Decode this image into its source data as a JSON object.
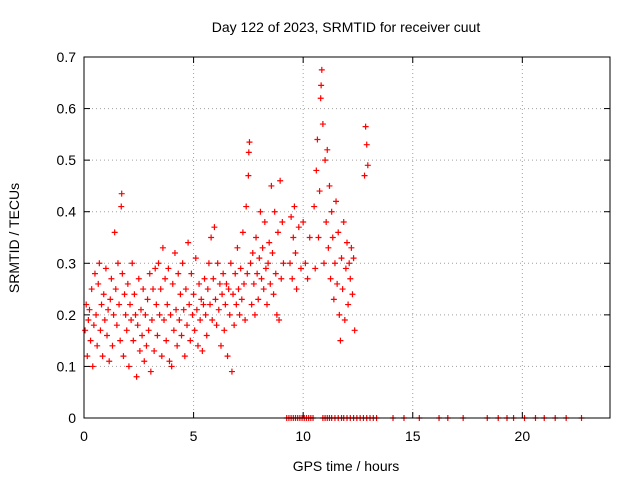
{
  "chart_data": {
    "type": "scatter",
    "title": "Day 122 of 2023, SRMTID for receiver cuut",
    "xlabel": "GPS time / hours",
    "ylabel": "SRMTID / TECUs",
    "xlim": [
      0,
      24
    ],
    "ylim": [
      0,
      0.7
    ],
    "xticks": [
      0,
      5,
      10,
      15,
      20
    ],
    "yticks": [
      0,
      0.1,
      0.2,
      0.3,
      0.4,
      0.5,
      0.6,
      0.7
    ],
    "grid": true,
    "marker": "+",
    "color": "#ff0000",
    "series": [
      {
        "name": "SRMTID",
        "points": [
          [
            0.05,
            0.17
          ],
          [
            0.1,
            0.22
          ],
          [
            0.15,
            0.12
          ],
          [
            0.2,
            0.19
          ],
          [
            0.25,
            0.21
          ],
          [
            0.3,
            0.15
          ],
          [
            0.35,
            0.25
          ],
          [
            0.4,
            0.1
          ],
          [
            0.45,
            0.18
          ],
          [
            0.5,
            0.28
          ],
          [
            0.55,
            0.2
          ],
          [
            0.6,
            0.14
          ],
          [
            0.65,
            0.26
          ],
          [
            0.7,
            0.3
          ],
          [
            0.75,
            0.17
          ],
          [
            0.8,
            0.22
          ],
          [
            0.85,
            0.12
          ],
          [
            0.9,
            0.24
          ],
          [
            0.95,
            0.19
          ],
          [
            1.0,
            0.29
          ],
          [
            1.05,
            0.16
          ],
          [
            1.1,
            0.21
          ],
          [
            1.15,
            0.11
          ],
          [
            1.2,
            0.23
          ],
          [
            1.25,
            0.27
          ],
          [
            1.3,
            0.14
          ],
          [
            1.35,
            0.2
          ],
          [
            1.4,
            0.36
          ],
          [
            1.45,
            0.25
          ],
          [
            1.5,
            0.18
          ],
          [
            1.55,
            0.3
          ],
          [
            1.6,
            0.22
          ],
          [
            1.65,
            0.15
          ],
          [
            1.7,
            0.41
          ],
          [
            1.72,
            0.435
          ],
          [
            1.75,
            0.28
          ],
          [
            1.8,
            0.12
          ],
          [
            1.85,
            0.24
          ],
          [
            1.9,
            0.2
          ],
          [
            1.95,
            0.17
          ],
          [
            2.0,
            0.26
          ],
          [
            2.05,
            0.1
          ],
          [
            2.1,
            0.22
          ],
          [
            2.15,
            0.19
          ],
          [
            2.2,
            0.3
          ],
          [
            2.25,
            0.15
          ],
          [
            2.3,
            0.24
          ],
          [
            2.35,
            0.2
          ],
          [
            2.4,
            0.08
          ],
          [
            2.45,
            0.18
          ],
          [
            2.5,
            0.27
          ],
          [
            2.55,
            0.13
          ],
          [
            2.6,
            0.21
          ],
          [
            2.65,
            0.16
          ],
          [
            2.7,
            0.25
          ],
          [
            2.75,
            0.11
          ],
          [
            2.8,
            0.2
          ],
          [
            2.85,
            0.14
          ],
          [
            2.9,
            0.23
          ],
          [
            2.95,
            0.17
          ],
          [
            3.0,
            0.28
          ],
          [
            3.05,
            0.09
          ],
          [
            3.1,
            0.19
          ],
          [
            3.15,
            0.25
          ],
          [
            3.2,
            0.13
          ],
          [
            3.25,
            0.29
          ],
          [
            3.3,
            0.22
          ],
          [
            3.35,
            0.16
          ],
          [
            3.4,
            0.3
          ],
          [
            3.45,
            0.2
          ],
          [
            3.5,
            0.25
          ],
          [
            3.55,
            0.12
          ],
          [
            3.6,
            0.33
          ],
          [
            3.65,
            0.19
          ],
          [
            3.7,
            0.27
          ],
          [
            3.75,
            0.15
          ],
          [
            3.8,
            0.22
          ],
          [
            3.85,
            0.29
          ],
          [
            3.9,
            0.11
          ],
          [
            3.95,
            0.2
          ],
          [
            4.0,
            0.1
          ],
          [
            4.05,
            0.26
          ],
          [
            4.1,
            0.17
          ],
          [
            4.15,
            0.32
          ],
          [
            4.2,
            0.21
          ],
          [
            4.25,
            0.14
          ],
          [
            4.3,
            0.28
          ],
          [
            4.35,
            0.19
          ],
          [
            4.4,
            0.24
          ],
          [
            4.45,
            0.16
          ],
          [
            4.5,
            0.3
          ],
          [
            4.55,
            0.21
          ],
          [
            4.6,
            0.12
          ],
          [
            4.65,
            0.25
          ],
          [
            4.7,
            0.18
          ],
          [
            4.75,
            0.34
          ],
          [
            4.8,
            0.22
          ],
          [
            4.85,
            0.15
          ],
          [
            4.9,
            0.28
          ],
          [
            4.95,
            0.2
          ],
          [
            5.0,
            0.24
          ],
          [
            5.05,
            0.17
          ],
          [
            5.1,
            0.31
          ],
          [
            5.15,
            0.21
          ],
          [
            5.2,
            0.14
          ],
          [
            5.25,
            0.26
          ],
          [
            5.3,
            0.19
          ],
          [
            5.35,
            0.23
          ],
          [
            5.4,
            0.13
          ],
          [
            5.45,
            0.22
          ],
          [
            5.5,
            0.27
          ],
          [
            5.55,
            0.2
          ],
          [
            5.6,
            0.16
          ],
          [
            5.65,
            0.25
          ],
          [
            5.7,
            0.3
          ],
          [
            5.75,
            0.22
          ],
          [
            5.8,
            0.35
          ],
          [
            5.85,
            0.19
          ],
          [
            5.9,
            0.27
          ],
          [
            5.95,
            0.37
          ],
          [
            6.0,
            0.23
          ],
          [
            6.05,
            0.18
          ],
          [
            6.1,
            0.3
          ],
          [
            6.15,
            0.21
          ],
          [
            6.2,
            0.26
          ],
          [
            6.25,
            0.14
          ],
          [
            6.3,
            0.24
          ],
          [
            6.35,
            0.28
          ],
          [
            6.4,
            0.17
          ],
          [
            6.45,
            0.22
          ],
          [
            6.5,
            0.26
          ],
          [
            6.55,
            0.12
          ],
          [
            6.6,
            0.25
          ],
          [
            6.65,
            0.2
          ],
          [
            6.7,
            0.3
          ],
          [
            6.75,
            0.09
          ],
          [
            6.8,
            0.24
          ],
          [
            6.85,
            0.18
          ],
          [
            6.9,
            0.28
          ],
          [
            6.95,
            0.22
          ],
          [
            7.0,
            0.33
          ],
          [
            7.05,
            0.25
          ],
          [
            7.1,
            0.2
          ],
          [
            7.15,
            0.29
          ],
          [
            7.2,
            0.23
          ],
          [
            7.25,
            0.36
          ],
          [
            7.3,
            0.26
          ],
          [
            7.35,
            0.19
          ],
          [
            7.4,
            0.41
          ],
          [
            7.45,
            0.28
          ],
          [
            7.5,
            0.47
          ],
          [
            7.52,
            0.515
          ],
          [
            7.55,
            0.535
          ],
          [
            7.6,
            0.3
          ],
          [
            7.65,
            0.22
          ],
          [
            7.7,
            0.32
          ],
          [
            7.75,
            0.26
          ],
          [
            7.8,
            0.2
          ],
          [
            7.85,
            0.35
          ],
          [
            7.9,
            0.28
          ],
          [
            7.95,
            0.23
          ],
          [
            8.0,
            0.31
          ],
          [
            8.05,
            0.4
          ],
          [
            8.1,
            0.27
          ],
          [
            8.15,
            0.33
          ],
          [
            8.2,
            0.25
          ],
          [
            8.25,
            0.38
          ],
          [
            8.3,
            0.29
          ],
          [
            8.35,
            0.22
          ],
          [
            8.4,
            0.3
          ],
          [
            8.45,
            0.34
          ],
          [
            8.5,
            0.26
          ],
          [
            8.55,
            0.45
          ],
          [
            8.6,
            0.32
          ],
          [
            8.65,
            0.24
          ],
          [
            8.7,
            0.4
          ],
          [
            8.75,
            0.28
          ],
          [
            8.8,
            0.2
          ],
          [
            8.85,
            0.36
          ],
          [
            8.9,
            0.19
          ],
          [
            8.95,
            0.46
          ],
          [
            9.0,
            0.27
          ],
          [
            9.05,
            0.38
          ],
          [
            9.1,
            0.3
          ],
          [
            9.4,
            0.3
          ],
          [
            9.45,
            0.39
          ],
          [
            9.5,
            0.27
          ],
          [
            9.55,
            0.35
          ],
          [
            9.6,
            0.41
          ],
          [
            9.65,
            0.32
          ],
          [
            9.7,
            0.25
          ],
          [
            9.8,
            0.37
          ],
          [
            9.9,
            0.29
          ],
          [
            10.0,
            0.38
          ],
          [
            10.1,
            0.3
          ],
          [
            10.2,
            0.27
          ],
          [
            10.3,
            0.35
          ],
          [
            10.5,
            0.41
          ],
          [
            10.55,
            0.29
          ],
          [
            10.6,
            0.48
          ],
          [
            10.65,
            0.54
          ],
          [
            10.7,
            0.35
          ],
          [
            10.75,
            0.44
          ],
          [
            10.8,
            0.62
          ],
          [
            10.82,
            0.645
          ],
          [
            10.85,
            0.675
          ],
          [
            10.9,
            0.57
          ],
          [
            10.95,
            0.3
          ],
          [
            11.0,
            0.5
          ],
          [
            11.05,
            0.38
          ],
          [
            11.1,
            0.52
          ],
          [
            11.15,
            0.33
          ],
          [
            11.2,
            0.45
          ],
          [
            11.25,
            0.27
          ],
          [
            11.3,
            0.4
          ],
          [
            11.35,
            0.35
          ],
          [
            11.4,
            0.23
          ],
          [
            11.45,
            0.3
          ],
          [
            11.5,
            0.42
          ],
          [
            11.55,
            0.26
          ],
          [
            11.6,
            0.36
          ],
          [
            11.65,
            0.2
          ],
          [
            11.7,
            0.15
          ],
          [
            11.75,
            0.31
          ],
          [
            11.8,
            0.25
          ],
          [
            11.85,
            0.38
          ],
          [
            11.9,
            0.19
          ],
          [
            11.95,
            0.29
          ],
          [
            12.0,
            0.34
          ],
          [
            12.05,
            0.22
          ],
          [
            12.1,
            0.3
          ],
          [
            12.15,
            0.27
          ],
          [
            12.2,
            0.33
          ],
          [
            12.25,
            0.24
          ],
          [
            12.3,
            0.31
          ],
          [
            12.35,
            0.17
          ],
          [
            12.8,
            0.47
          ],
          [
            12.85,
            0.565
          ],
          [
            12.9,
            0.53
          ],
          [
            12.95,
            0.49
          ]
        ]
      }
    ],
    "zero_x": [
      9.25,
      9.35,
      9.45,
      9.55,
      9.65,
      9.75,
      9.85,
      9.95,
      10.05,
      10.15,
      10.25,
      10.35,
      10.45,
      10.9,
      11.0,
      11.1,
      11.2,
      11.3,
      11.45,
      11.6,
      11.75,
      11.85,
      12.0,
      12.15,
      12.3,
      12.45,
      12.6,
      12.75,
      12.9,
      13.05,
      13.2,
      13.35,
      14.1,
      14.6,
      15.3,
      16.2,
      16.6,
      17.3,
      18.4,
      18.9,
      19.3,
      19.6,
      20.1,
      20.6,
      21.0,
      21.5,
      22.0,
      22.7
    ]
  }
}
